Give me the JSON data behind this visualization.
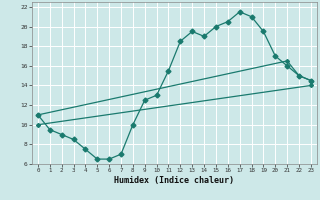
{
  "xlabel": "Humidex (Indice chaleur)",
  "bg_color": "#cde8e8",
  "grid_color": "#b0d0d0",
  "line_color": "#1a7a6e",
  "xlim": [
    -0.5,
    23.5
  ],
  "ylim": [
    6,
    22.5
  ],
  "xticks": [
    0,
    1,
    2,
    3,
    4,
    5,
    6,
    7,
    8,
    9,
    10,
    11,
    12,
    13,
    14,
    15,
    16,
    17,
    18,
    19,
    20,
    21,
    22,
    23
  ],
  "yticks": [
    6,
    8,
    10,
    12,
    14,
    16,
    18,
    20,
    22
  ],
  "line1_x": [
    0,
    1,
    2,
    3,
    4,
    5,
    6,
    7,
    8,
    9,
    10,
    11,
    12,
    13,
    14,
    15,
    16,
    17,
    18,
    19,
    20,
    21,
    22,
    23
  ],
  "line1_y": [
    11.0,
    9.5,
    9.0,
    8.5,
    7.5,
    6.5,
    6.5,
    7.0,
    10.0,
    12.5,
    13.0,
    15.5,
    18.5,
    19.5,
    19.0,
    20.0,
    20.5,
    21.5,
    21.0,
    19.5,
    17.0,
    16.0,
    15.0,
    14.5
  ],
  "line2_x": [
    0,
    21,
    22,
    23
  ],
  "line2_y": [
    11.0,
    16.5,
    15.0,
    14.5
  ],
  "line3_x": [
    0,
    23
  ],
  "line3_y": [
    10.0,
    14.0
  ]
}
